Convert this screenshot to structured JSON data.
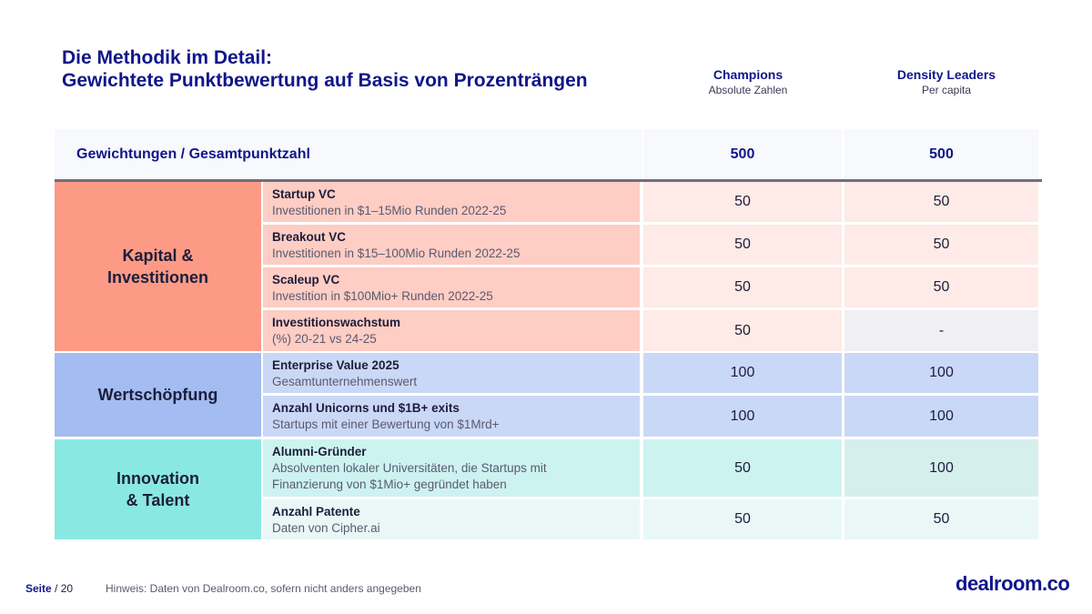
{
  "title": {
    "line1": "Die Methodik im Detail:",
    "line2": "Gewichtete Punktbewertung auf Basis von Prozenträngen"
  },
  "columns": [
    {
      "name": "Champions",
      "sub": "Absolute Zahlen"
    },
    {
      "name": "Density Leaders",
      "sub": "Per capita"
    }
  ],
  "weights": {
    "label": "Gewichtungen / Gesamtpunktzahl",
    "champions": "500",
    "density": "500"
  },
  "categories": [
    {
      "name_line1": "Kapital &",
      "name_line2": "Investitionen"
    },
    {
      "name_line1": "Wertschöpfung",
      "name_line2": ""
    },
    {
      "name_line1": "Innovation",
      "name_line2": "& Talent"
    }
  ],
  "rows": [
    {
      "name": "Startup VC",
      "desc": "Investitionen in $1–15Mio Runden 2022-25",
      "desc2": "",
      "champions": "50",
      "density": "50"
    },
    {
      "name": "Breakout VC",
      "desc": "Investitionen in $15–100Mio Runden 2022-25",
      "desc2": "",
      "champions": "50",
      "density": "50"
    },
    {
      "name": "Scaleup VC",
      "desc": "Investition in $100Mio+ Runden 2022-25",
      "desc2": "",
      "champions": "50",
      "density": "50"
    },
    {
      "name": "Investitionswachstum",
      "desc": "(%) 20-21 vs 24-25",
      "desc2": "",
      "champions": "50",
      "density": "-"
    },
    {
      "name": "Enterprise Value 2025",
      "desc": "Gesamtunternehmenswert",
      "desc2": "",
      "champions": "100",
      "density": "100"
    },
    {
      "name": "Anzahl Unicorns und $1B+ exits",
      "desc": "Startups mit einer Bewertung von $1Mrd+",
      "desc2": "",
      "champions": "100",
      "density": "100"
    },
    {
      "name": "Alumni-Gründer",
      "desc": "Absolventen lokaler Universitäten, die Startups mit",
      "desc2": "Finanzierung von $1Mio+ gegründet haben",
      "champions": "50",
      "density": "100"
    },
    {
      "name": "Anzahl Patente",
      "desc": "Daten von Cipher.ai",
      "desc2": "",
      "champions": "50",
      "density": "50"
    }
  ],
  "colors": {
    "cat_capital": "#fd9a85",
    "cat_value": "#a3bcf2",
    "cat_innovation": "#8ae8e3",
    "row_capital": "#fecdc4",
    "row_value": "#cad8f7",
    "row_innovation": "#cdf3f0",
    "val_capital_light": "#feeae6",
    "val_gray": "#f0f0f2",
    "val_innovation_mid": "#d5efed",
    "val_innovation_light": "#e9f8f7"
  },
  "footer": {
    "page_label": "Seite",
    "page_sep": " / ",
    "page_num": "20",
    "note": "Hinweis: Daten von Dealroom.co, sofern nicht anders angegeben",
    "logo": "dealroom.co"
  }
}
